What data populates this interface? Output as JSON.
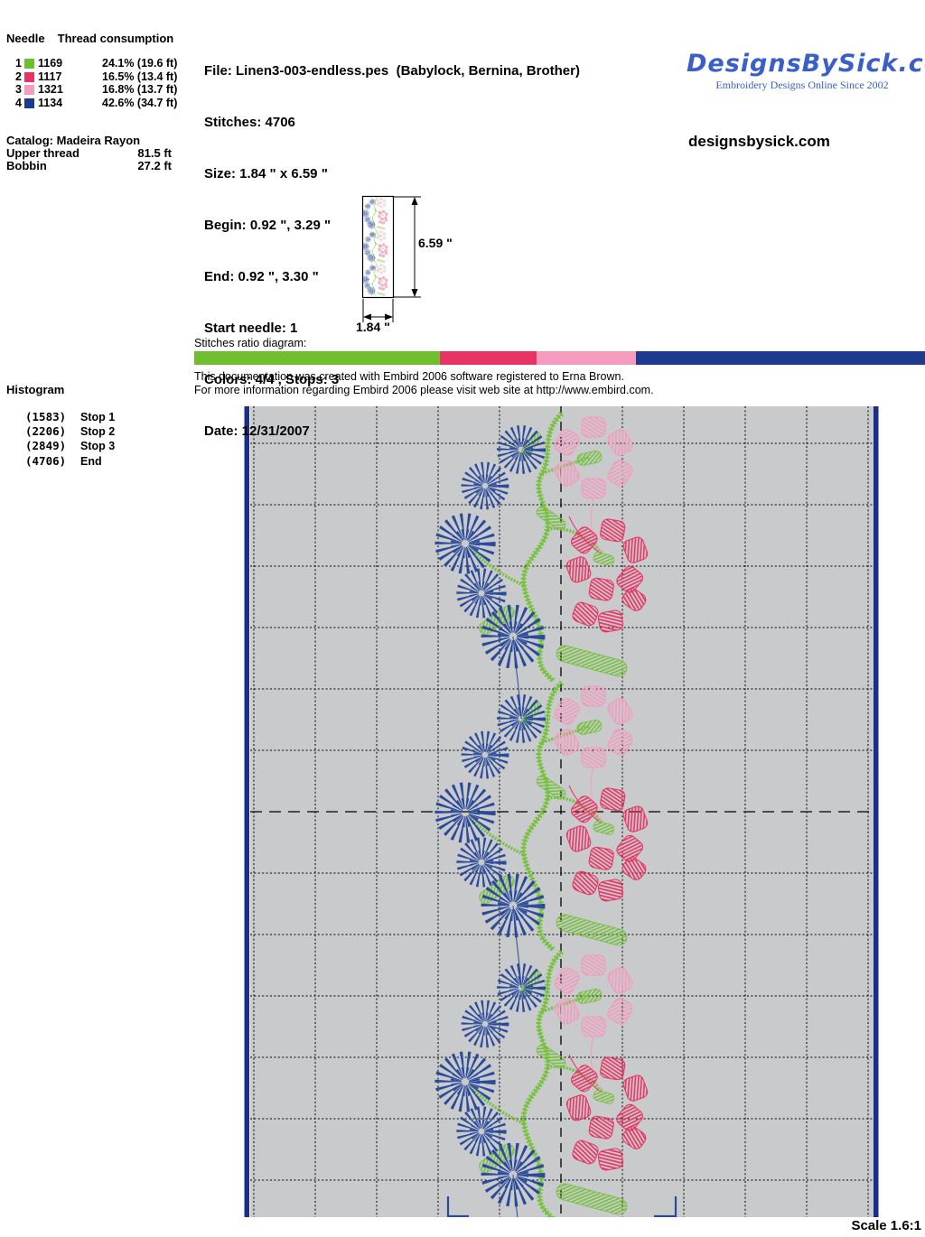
{
  "needle_table": {
    "header_needle": "Needle",
    "header_consumption": "Thread consumption",
    "rows": [
      {
        "needle": "1",
        "color": "#6FBE2F",
        "thread": "1169",
        "consumption": "24.1% (19.6 ft)"
      },
      {
        "needle": "2",
        "color": "#EA3365",
        "thread": "1117",
        "consumption": "16.5% (13.4 ft)"
      },
      {
        "needle": "3",
        "color": "#F59BC0",
        "thread": "1321",
        "consumption": "16.8% (13.7 ft)"
      },
      {
        "needle": "4",
        "color": "#1E3A8F",
        "thread": "1134",
        "consumption": "42.6% (34.7 ft)"
      }
    ],
    "catalog": "Catalog: Madeira Rayon",
    "upper_thread_label": "Upper thread",
    "upper_thread_value": "81.5 ft",
    "bobbin_label": "Bobbin",
    "bobbin_value": "27.2 ft"
  },
  "file_info": {
    "file": "File: Linen3-003-endless.pes  (Babylock, Bernina, Brother)",
    "stitches": "Stitches: 4706",
    "size": "Size: 1.84 \" x 6.59 \"",
    "begin": "Begin: 0.92 \", 3.29 \"",
    "end": "End: 0.92 \", 3.30 \"",
    "start_needle": "Start needle: 1",
    "colors": "Colors: 4/4 , Stops: 3",
    "date": "Date: 12/31/2007"
  },
  "branding": {
    "logo_text": "DesignsBySick.com",
    "logo_color": "#3B5FC8",
    "tagline": "Embroidery Designs Online Since 2002",
    "website": "designsbysick.com"
  },
  "thumbnail": {
    "height_label": "6.59 \"",
    "width_label": "1.84 \""
  },
  "ratio_diagram": {
    "label": "Stitches ratio diagram:",
    "segments": [
      {
        "name": "needle-1-green",
        "color": "#6FBE2F",
        "percent": 33.6
      },
      {
        "name": "needle-2-crimson",
        "color": "#EA3365",
        "percent": 13.2
      },
      {
        "name": "needle-3-pink",
        "color": "#F59BC0",
        "percent": 13.7
      },
      {
        "name": "needle-4-navy",
        "color": "#1E3A8F",
        "percent": 39.5
      }
    ]
  },
  "embird_note": {
    "line1": "This documentation was created with Embird 2006 software registered to Erna Brown.",
    "line2": "For more information regarding Embird 2006 please visit web site at http://www.embird.com."
  },
  "histogram": {
    "title": "Histogram",
    "entries": [
      {
        "count": "(1583)",
        "label": "Stop 1"
      },
      {
        "count": "(2206)",
        "label": "Stop 2"
      },
      {
        "count": "(2849)",
        "label": "Stop 3"
      },
      {
        "count": "(4706)",
        "label": "End"
      }
    ]
  },
  "canvas": {
    "background": "#C9CACB",
    "edge_color": "#1B2F8A",
    "scale_label": "Scale 1.6:1"
  },
  "design_colors": {
    "stem_green": "#74C13A",
    "flower_blue": "#2A4B9B",
    "flower_pink": "#F59BC0",
    "flower_crimson": "#EA3365"
  }
}
